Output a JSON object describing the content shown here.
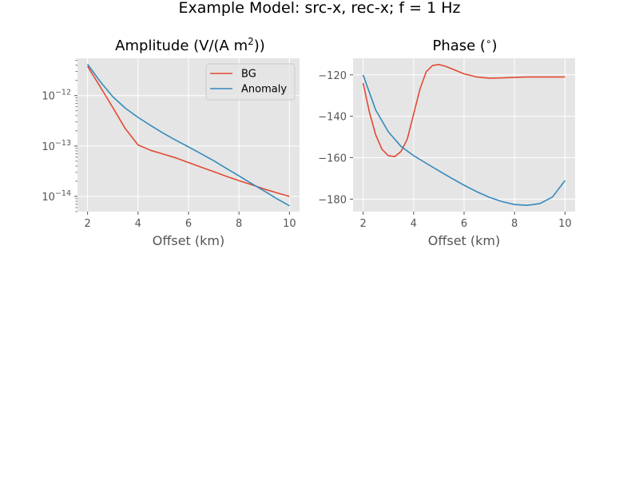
{
  "figure": {
    "title": "Example Model: src-x, rec-x; f = 1 Hz"
  },
  "chart_data": [
    {
      "type": "line",
      "title_prefix": "Amplitude (V/(A m",
      "title_sup": "2",
      "title_suffix": "))",
      "xlabel": "Offset (km)",
      "ylabel": "",
      "yscale": "log",
      "xlim": [
        1.6,
        10.4
      ],
      "ylim": [
        5e-15,
        5.5e-12
      ],
      "xticks": [
        "2",
        "4",
        "6",
        "8",
        "10"
      ],
      "yticks": [
        {
          "base": "10",
          "exp": "−12",
          "value": 1e-12
        },
        {
          "base": "10",
          "exp": "−13",
          "value": 1e-13
        },
        {
          "base": "10",
          "exp": "−14",
          "value": 1e-14
        }
      ],
      "grid": true,
      "legend": "top-right",
      "series": [
        {
          "name": "BG",
          "color": "#E24A33",
          "x": [
            2.0,
            2.5,
            3.0,
            3.5,
            4.0,
            4.5,
            5.0,
            5.5,
            6.0,
            6.5,
            7.0,
            7.5,
            8.0,
            8.5,
            9.0,
            9.5,
            10.0
          ],
          "y": [
            3.8e-12,
            1.5e-12,
            5.8e-13,
            2.2e-13,
            1.05e-13,
            8.2e-14,
            6.9e-14,
            5.8e-14,
            4.7e-14,
            3.8e-14,
            3.1e-14,
            2.5e-14,
            2.05e-14,
            1.7e-14,
            1.4e-14,
            1.18e-14,
            1e-14
          ]
        },
        {
          "name": "Anomaly",
          "color": "#348ABD",
          "x": [
            2.0,
            2.5,
            3.0,
            3.5,
            4.0,
            4.5,
            5.0,
            5.5,
            6.0,
            6.5,
            7.0,
            7.5,
            8.0,
            8.5,
            9.0,
            9.5,
            10.0
          ],
          "y": [
            4.2e-12,
            1.9e-12,
            9.5e-13,
            5.6e-13,
            3.7e-13,
            2.55e-13,
            1.8e-13,
            1.3e-13,
            9.6e-14,
            7e-14,
            5.1e-14,
            3.6e-14,
            2.55e-14,
            1.8e-14,
            1.28e-14,
            9e-15,
            6.5e-15
          ]
        }
      ]
    },
    {
      "type": "line",
      "title_prefix": "Phase (",
      "title_sup": "∘",
      "title_suffix": ")",
      "xlabel": "Offset (km)",
      "ylabel": "",
      "yscale": "linear",
      "xlim": [
        1.6,
        10.4
      ],
      "ylim": [
        -186,
        -112
      ],
      "xticks": [
        "2",
        "4",
        "6",
        "8",
        "10"
      ],
      "yticks": [
        {
          "label": "−120",
          "value": -120
        },
        {
          "label": "−140",
          "value": -140
        },
        {
          "label": "−160",
          "value": -160
        },
        {
          "label": "−180",
          "value": -180
        }
      ],
      "grid": true,
      "series": [
        {
          "name": "BG",
          "color": "#E24A33",
          "x": [
            2.0,
            2.25,
            2.5,
            2.75,
            3.0,
            3.25,
            3.5,
            3.75,
            4.0,
            4.25,
            4.5,
            4.75,
            5.0,
            5.25,
            5.5,
            6.0,
            6.5,
            7.0,
            7.5,
            8.0,
            8.5,
            9.0,
            9.5,
            10.0
          ],
          "y": [
            -124,
            -138,
            -149,
            -156,
            -159,
            -159.5,
            -157,
            -151,
            -139,
            -127,
            -118.5,
            -115.5,
            -115,
            -115.8,
            -117,
            -119.5,
            -121,
            -121.6,
            -121.5,
            -121.2,
            -121,
            -121,
            -121,
            -121
          ]
        },
        {
          "name": "Anomaly",
          "color": "#348ABD",
          "x": [
            2.0,
            2.5,
            3.0,
            3.5,
            4.0,
            4.5,
            5.0,
            5.5,
            6.0,
            6.5,
            7.0,
            7.5,
            8.0,
            8.5,
            9.0,
            9.5,
            10.0
          ],
          "y": [
            -120,
            -137,
            -147.5,
            -154.5,
            -159,
            -162.7,
            -166.3,
            -169.9,
            -173.3,
            -176.4,
            -179.1,
            -181.2,
            -182.6,
            -183,
            -182.2,
            -179,
            -171
          ]
        }
      ]
    }
  ]
}
